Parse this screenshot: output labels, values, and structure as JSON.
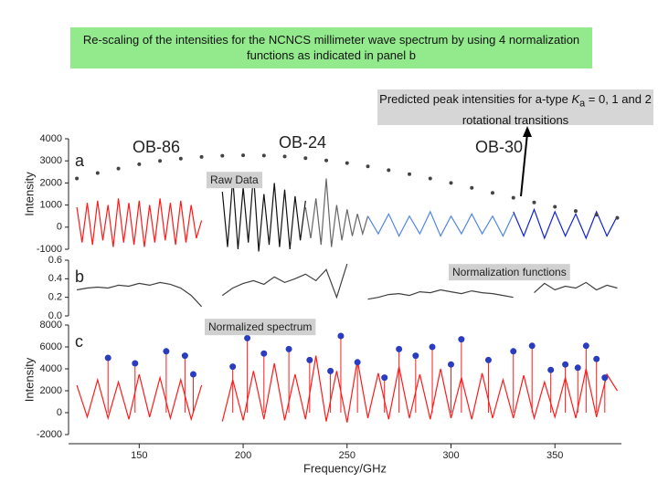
{
  "slide_title": "Re-scaling of the intensities for the NCNCS millimeter wave spectrum by using 4 normalization functions as indicated in panel b",
  "callout": {
    "before": "Predicted peak intensities for a-type ",
    "symbol": "K",
    "subscript": "a",
    "after": " = 0, 1 and 2 rotational transitions"
  },
  "chart_data": [
    {
      "type": "line",
      "ylabel": "Intensity",
      "annotations": [
        "a",
        "OB-86",
        "OB-24",
        "OB-30",
        "Raw Data"
      ],
      "xlim": [
        116,
        382
      ],
      "ylim": [
        -1000,
        4000
      ],
      "yticks": [
        -1000,
        0,
        1000,
        2000,
        3000,
        4000
      ],
      "series": [
        {
          "color": "#ff1a1a",
          "x": [
            120,
            122.5,
            125,
            127.5,
            130,
            132.5,
            135,
            137.5,
            140,
            142.5,
            145,
            147.5,
            150,
            152.5,
            155,
            157.5,
            160,
            162.5,
            165,
            167.5,
            170,
            172.5,
            175,
            177.5,
            180
          ],
          "values": [
            900,
            -700,
            1100,
            -800,
            1200,
            -600,
            1000,
            -900,
            1300,
            -700,
            1100,
            -800,
            1200,
            -900,
            1000,
            -700,
            1300,
            -600,
            1100,
            -800,
            1200,
            -700,
            1000,
            -500,
            300
          ]
        },
        {
          "color": "#111111",
          "x": [
            190,
            192.5,
            195,
            197.5,
            200,
            202.5,
            205,
            207.5,
            210,
            212.5,
            215,
            217.5,
            220,
            222.5,
            225,
            227.5,
            230
          ],
          "values": [
            1600,
            -900,
            2200,
            -1000,
            1800,
            -700,
            2400,
            -1100,
            1500,
            -800,
            2000,
            -900,
            1700,
            -1000,
            1400,
            -600,
            1200
          ]
        },
        {
          "color": "#666666",
          "x": [
            230,
            232.5,
            235,
            237.5,
            240,
            242.5,
            245,
            247.5,
            250,
            252.5,
            255,
            257.5,
            260
          ],
          "values": [
            900,
            -500,
            1300,
            -800,
            2200,
            -900,
            1000,
            -600,
            800,
            -400,
            600,
            -300,
            500
          ]
        },
        {
          "color": "#4f86ea",
          "x": [
            260,
            265,
            270,
            275,
            280,
            285,
            290,
            295,
            300,
            305,
            310,
            315,
            320,
            325,
            330
          ],
          "values": [
            500,
            -300,
            600,
            -400,
            500,
            -300,
            700,
            -400,
            500,
            -300,
            600,
            -300,
            500,
            -400,
            600
          ]
        },
        {
          "color": "#1020d8",
          "x": [
            330,
            335,
            340,
            345,
            350,
            355,
            360,
            365,
            370,
            375,
            380
          ],
          "values": [
            700,
            -400,
            800,
            -500,
            700,
            -400,
            600,
            -500,
            700,
            -400,
            500
          ]
        },
        {
          "type": "scatter",
          "color": "#444444",
          "x": [
            120,
            130,
            140,
            150,
            160,
            170,
            180,
            190,
            200,
            210,
            220,
            230,
            240,
            250,
            260,
            270,
            280,
            290,
            300,
            310,
            320,
            330,
            340,
            350,
            360,
            370,
            380
          ],
          "values": [
            2200,
            2450,
            2650,
            2850,
            3000,
            3100,
            3180,
            3230,
            3250,
            3240,
            3200,
            3120,
            3020,
            2900,
            2750,
            2580,
            2400,
            2200,
            2000,
            1780,
            1550,
            1330,
            1120,
            920,
            730,
            560,
            420
          ]
        }
      ]
    },
    {
      "type": "line",
      "annotations": [
        "b",
        "Normalization functions"
      ],
      "xlim": [
        116,
        382
      ],
      "ylim": [
        0,
        0.6
      ],
      "yticks": [
        {
          "value": 0,
          "label": "0.0"
        },
        0.2,
        0.4,
        0.6
      ],
      "series": [
        {
          "color": "#404040",
          "x": [
            120,
            125,
            130,
            135,
            140,
            145,
            150,
            155,
            160,
            165,
            170,
            175,
            180,
            185,
            190,
            195,
            200,
            205,
            210,
            215,
            220,
            225,
            230,
            235,
            240,
            245,
            250,
            255,
            260,
            265,
            270,
            275,
            280,
            285,
            290,
            295,
            300,
            305,
            310,
            315,
            320,
            325,
            330,
            335,
            340,
            345,
            350,
            355,
            360,
            365,
            370,
            375,
            380
          ],
          "values": [
            0.28,
            0.3,
            0.31,
            0.3,
            0.33,
            0.32,
            0.35,
            0.33,
            0.36,
            0.34,
            0.3,
            0.22,
            0.1,
            null,
            0.22,
            0.3,
            0.35,
            0.38,
            0.34,
            0.42,
            0.36,
            0.4,
            0.45,
            0.38,
            0.5,
            0.2,
            0.56,
            null,
            0.18,
            0.2,
            0.23,
            0.24,
            0.22,
            0.26,
            0.25,
            0.28,
            0.26,
            0.24,
            0.27,
            0.25,
            0.24,
            0.22,
            0.2,
            null,
            0.25,
            0.35,
            0.28,
            0.32,
            0.3,
            0.36,
            0.28,
            0.33,
            0.3
          ]
        }
      ]
    },
    {
      "type": "line",
      "ylabel": "Intensity",
      "xlabel": "Frequency/GHz",
      "annotations": [
        "c",
        "Normalized spectrum"
      ],
      "xlim": [
        116,
        382
      ],
      "xticks": [
        150,
        200,
        250,
        300,
        350
      ],
      "ylim": [
        -2000,
        8000
      ],
      "yticks": [
        -2000,
        0,
        2000,
        4000,
        6000,
        8000
      ],
      "series": [
        {
          "color": "#ff1a1a",
          "x": [
            120,
            125,
            130,
            135,
            140,
            145,
            150,
            155,
            160,
            165,
            170,
            175,
            180,
            185,
            190,
            195,
            200,
            205,
            210,
            215,
            220,
            225,
            230,
            235,
            240,
            245,
            250,
            255,
            260,
            265,
            270,
            275,
            280,
            285,
            290,
            295,
            300,
            305,
            310,
            315,
            320,
            325,
            330,
            335,
            340,
            345,
            350,
            355,
            360,
            365,
            370,
            375,
            380
          ],
          "values": [
            2500,
            -400,
            3000,
            -500,
            2800,
            -600,
            3500,
            -400,
            3200,
            -500,
            3000,
            -600,
            2500,
            null,
            -800,
            3000,
            -700,
            3800,
            -600,
            4500,
            -700,
            3500,
            -600,
            5200,
            -800,
            3800,
            -900,
            4800,
            -500,
            3600,
            -600,
            4200,
            -500,
            3500,
            -600,
            4000,
            -500,
            3200,
            -600,
            3600,
            -500,
            3000,
            -500,
            3400,
            -500,
            2800,
            -400,
            3200,
            -500,
            4000,
            -400,
            3500,
            2000
          ]
        },
        {
          "type": "scatter",
          "color": "#2a3cc0",
          "x": [
            135,
            148,
            163,
            172,
            176,
            195,
            202,
            210,
            222,
            232,
            242,
            247,
            255,
            268,
            275,
            283,
            291,
            300,
            305,
            318,
            330,
            339,
            348,
            355,
            361,
            365,
            370,
            374
          ],
          "values": [
            5000,
            4500,
            5600,
            5200,
            3500,
            4200,
            6800,
            5400,
            5800,
            4800,
            3800,
            7000,
            4600,
            3200,
            5800,
            5200,
            6000,
            4400,
            6700,
            4800,
            5600,
            6100,
            3900,
            4400,
            4100,
            6100,
            4900,
            3200
          ]
        }
      ]
    }
  ]
}
